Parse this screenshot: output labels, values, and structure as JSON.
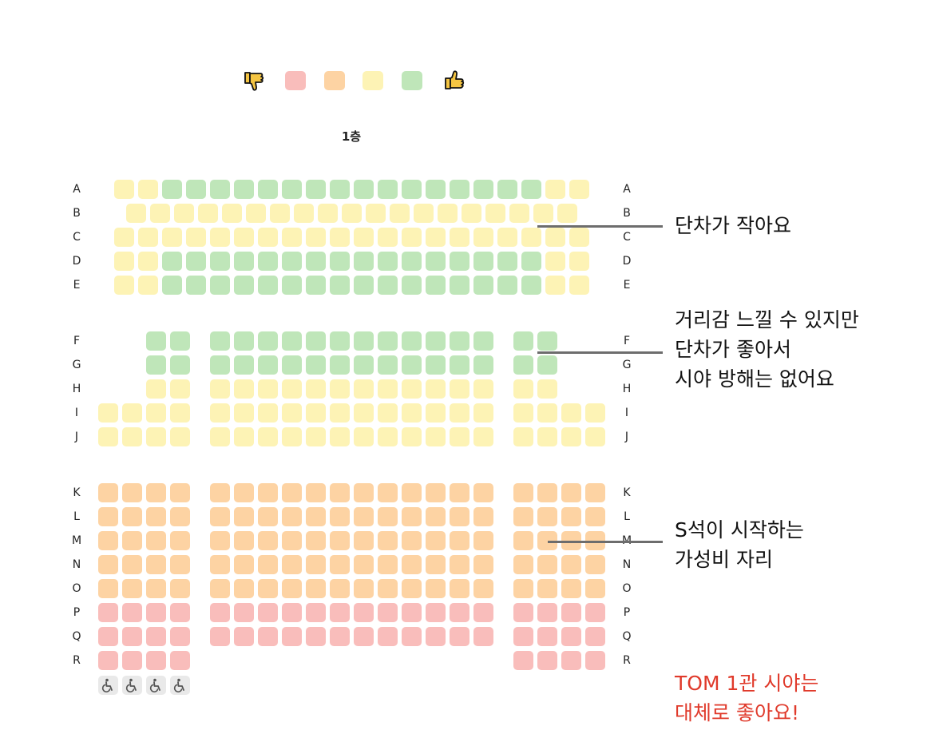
{
  "floor_label": "1층",
  "legend": {
    "low_icon": "thumbs-down-icon",
    "high_icon": "thumbs-up-icon",
    "colors": [
      "#f9bdbb",
      "#fdd3a3",
      "#fdf3b5",
      "#bfe6b9"
    ]
  },
  "colors": {
    "g": "#bfe6b9",
    "y": "#fdf3b5",
    "o": "#fdd3a3",
    "r": "#f9bdbb",
    "thumb": "#f5c542"
  },
  "rows": [
    "A",
    "B",
    "C",
    "D",
    "E",
    "F",
    "G",
    "H",
    "I",
    "J",
    "K",
    "L",
    "M",
    "N",
    "O",
    "P",
    "Q",
    "R"
  ],
  "wheelchair_seats": 4,
  "annotations": [
    {
      "id": "step-small",
      "text": "단차가 작아요"
    },
    {
      "id": "distance",
      "text": "거리감 느낄 수 있지만\n단차가 좋아서\n시야 방해는 없어요"
    },
    {
      "id": "s-seat",
      "text": "S석이 시작하는\n가성비 자리"
    },
    {
      "id": "summary",
      "text": "TOM 1관 시야는\n대체로 좋아요!"
    }
  ]
}
